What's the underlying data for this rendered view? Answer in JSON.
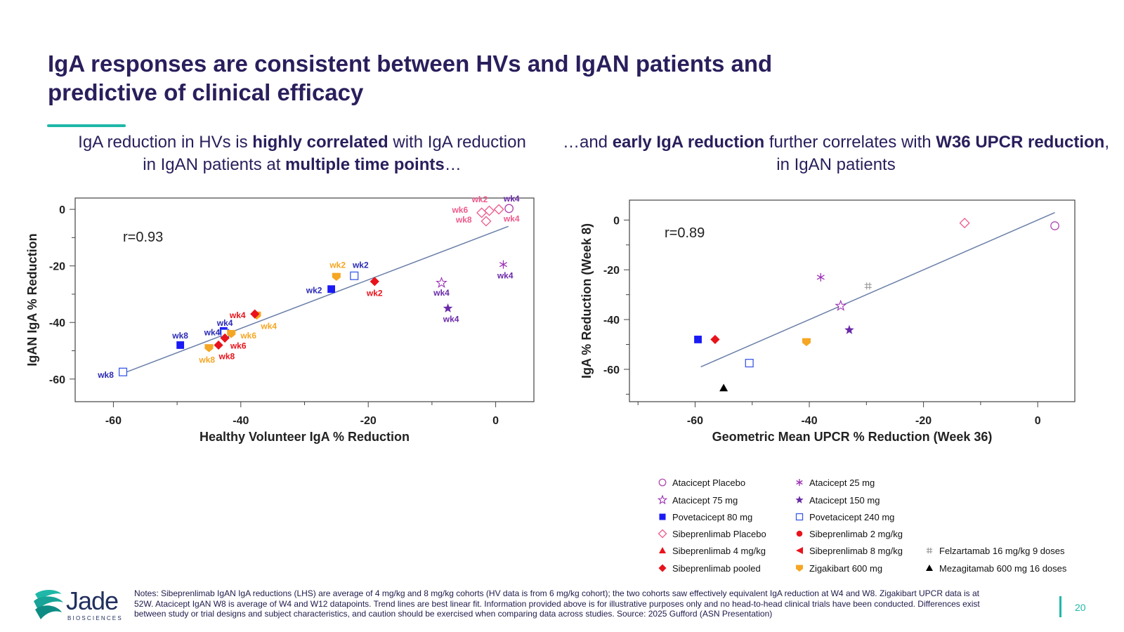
{
  "slide": {
    "title": "IgA responses are consistent between HVs and IgAN patients and predictive of clinical efficacy",
    "subtitle_left": [
      {
        "text": "IgA reduction in HVs is ",
        "bold": false
      },
      {
        "text": "highly correlated",
        "bold": true
      },
      {
        "text": " with IgA reduction in IgAN patients at ",
        "bold": false
      },
      {
        "text": "multiple time points",
        "bold": true
      },
      {
        "text": "…",
        "bold": false
      }
    ],
    "subtitle_right": [
      {
        "text": "…and ",
        "bold": false
      },
      {
        "text": "early IgA reduction",
        "bold": true
      },
      {
        "text": " further correlates with ",
        "bold": false
      },
      {
        "text": "W36 UPCR reduction",
        "bold": true
      },
      {
        "text": ", in IgAN patients",
        "bold": false
      }
    ],
    "notes": "Notes: Sibeprenlimab IgAN IgA reductions (LHS) are average of 4 mg/kg and 8 mg/kg cohorts (HV data is from 6 mg/kg cohort); the two cohorts saw effectively equivalent IgA reduction at W4 and W8. Zigakibart UPCR data is at 52W. Atacicept IgAN W8 is average of W4 and W12 datapoints. Trend lines are best linear fit. Information provided above is for illustrative purposes only and no head-to-head clinical trials have been conducted.  Differences exist between study or trial designs and subject characteristics, and caution should be exercised when comparing data across studies. Source: 2025 Gufford (ASN Presentation)",
    "page_number": "20",
    "logo": {
      "name": "Jade",
      "sub": "BIOSCIENCES"
    }
  },
  "colors": {
    "title": "#2a1e5c",
    "accent": "#1fb8a8",
    "trend": "#6a7fa8"
  },
  "chart_data": [
    {
      "type": "scatter",
      "xlabel": "Healthy Volunteer IgA % Reduction",
      "ylabel": "IgAN IgA % Reduction",
      "xlim": [
        -66,
        6
      ],
      "ylim": [
        -68,
        4
      ],
      "xticks": [
        -60,
        -40,
        -20,
        0
      ],
      "yticks": [
        0,
        -20,
        -40,
        -60
      ],
      "annotation": "r=0.93",
      "trendline": [
        [
          -58.5,
          -58
        ],
        [
          2,
          -6
        ]
      ],
      "points": [
        {
          "label": "wk2",
          "marker": "circle-open",
          "color": "#b04ab0",
          "x": 2.1,
          "y": 0.3,
          "lab": "wk2",
          "labColor": "#ee5a8a",
          "lx": -2.5,
          "ly": 3.5
        },
        {
          "label": "wk4",
          "marker": "circle-open",
          "color": "#b04ab0",
          "x": 2.1,
          "y": 0.3,
          "lab": "wk4",
          "labColor": "#6a2aa8",
          "lx": 2.5,
          "ly": 3.8
        },
        {
          "label": "",
          "marker": "diamond-open",
          "color": "#ee5a8a",
          "x": 0.5,
          "y": 0,
          "lab": "wk4",
          "labColor": "#ee5a8a",
          "lx": 2.5,
          "ly": -3.3
        },
        {
          "label": "",
          "marker": "diamond-open",
          "color": "#ee5a8a",
          "x": -1,
          "y": -0.5,
          "lab": "",
          "labColor": "#ee5a8a",
          "lx": 0,
          "ly": 0
        },
        {
          "label": "",
          "marker": "diamond-open",
          "color": "#ee5a8a",
          "x": -2.2,
          "y": -1.2,
          "lab": "wk6",
          "labColor": "#ee5a8a",
          "lx": -5.6,
          "ly": -0.2
        },
        {
          "label": "",
          "marker": "diamond-open",
          "color": "#ee5a8a",
          "x": -1.5,
          "y": -4.2,
          "lab": "wk8",
          "labColor": "#ee5a8a",
          "lx": -5,
          "ly": -3.7
        },
        {
          "label": "",
          "marker": "asterisk",
          "color": "#9b30b5",
          "x": 1.2,
          "y": -19.5,
          "lab": "wk4",
          "labColor": "#6a2aa8",
          "lx": 1.5,
          "ly": -23.4
        },
        {
          "label": "",
          "marker": "star-open",
          "color": "#9b30b5",
          "x": -8.5,
          "y": -26,
          "lab": "wk4",
          "labColor": "#6a2aa8",
          "lx": -8.5,
          "ly": -29.5
        },
        {
          "label": "",
          "marker": "star",
          "color": "#6a2aa8",
          "x": -7.5,
          "y": -35,
          "lab": "wk4",
          "labColor": "#6a2aa8",
          "lx": -7,
          "ly": -38.8
        },
        {
          "label": "",
          "marker": "square-open",
          "color": "#3a5ae8",
          "x": -22.2,
          "y": -23.5,
          "lab": "wk2",
          "labColor": "#2a2ab5",
          "lx": -21.2,
          "ly": -19.7
        },
        {
          "label": "",
          "marker": "shield",
          "color": "#f5a623",
          "x": -25,
          "y": -23.8,
          "lab": "wk2",
          "labColor": "#f5a623",
          "lx": -24.8,
          "ly": -19.7
        },
        {
          "label": "",
          "marker": "square",
          "color": "#1a1af5",
          "x": -25.8,
          "y": -28.2,
          "lab": "wk2",
          "labColor": "#2a2ab5",
          "lx": -28.5,
          "ly": -28.6
        },
        {
          "label": "",
          "marker": "diamond",
          "color": "#e8131b",
          "x": -19,
          "y": -25.5,
          "lab": "wk2",
          "labColor": "#e8131b",
          "lx": -19,
          "ly": -29.7
        },
        {
          "label": "",
          "marker": "shield",
          "color": "#f5a623",
          "x": -37.5,
          "y": -37.5,
          "lab": "wk4",
          "labColor": "#f5a623",
          "lx": -35.6,
          "ly": -41.3
        },
        {
          "label": "",
          "marker": "diamond",
          "color": "#e8131b",
          "x": -37.8,
          "y": -37,
          "lab": "wk4",
          "labColor": "#e8131b",
          "lx": -40.5,
          "ly": -37.4
        },
        {
          "label": "",
          "marker": "square",
          "color": "#1a1af5",
          "x": -42.7,
          "y": -43,
          "lab": "wk4",
          "labColor": "#2a2ab5",
          "lx": -42.5,
          "ly": -40.2
        },
        {
          "label": "",
          "marker": "square-open",
          "color": "#3a5ae8",
          "x": -42.5,
          "y": -43.8,
          "lab": "wk4",
          "labColor": "#2a2ab5",
          "lx": -44.5,
          "ly": -43.6
        },
        {
          "label": "",
          "marker": "shield",
          "color": "#f5a623",
          "x": -41.5,
          "y": -44,
          "lab": "wk6",
          "labColor": "#f5a623",
          "lx": -38.8,
          "ly": -44.6
        },
        {
          "label": "",
          "marker": "diamond",
          "color": "#e8131b",
          "x": -42.5,
          "y": -45.5,
          "lab": "wk6",
          "labColor": "#e8131b",
          "lx": -40.4,
          "ly": -48.2
        },
        {
          "label": "",
          "marker": "diamond",
          "color": "#e8131b",
          "x": -43.5,
          "y": -48,
          "lab": "wk8",
          "labColor": "#e8131b",
          "lx": -42.2,
          "ly": -52
        },
        {
          "label": "",
          "marker": "shield",
          "color": "#f5a623",
          "x": -45,
          "y": -49,
          "lab": "wk8",
          "labColor": "#f5a623",
          "lx": -45.3,
          "ly": -53.2
        },
        {
          "label": "",
          "marker": "square",
          "color": "#1a1af5",
          "x": -49.5,
          "y": -48,
          "lab": "wk8",
          "labColor": "#2a2ab5",
          "lx": -49.5,
          "ly": -44.6
        },
        {
          "label": "",
          "marker": "square-open",
          "color": "#3a5ae8",
          "x": -58.5,
          "y": -57.5,
          "lab": "wk8",
          "labColor": "#2a2ab5",
          "lx": -61.2,
          "ly": -58.6
        }
      ]
    },
    {
      "type": "scatter",
      "xlabel": "Geometric Mean UPCR % Reduction (Week 36)",
      "ylabel": "IgA % Reduction (Week 8)",
      "xlim": [
        -71.5,
        6.5
      ],
      "ylim": [
        -73,
        8
      ],
      "xticks": [
        -60,
        -40,
        -20,
        0
      ],
      "yticks": [
        0,
        -20,
        -40,
        -60
      ],
      "annotation": "r=0.89",
      "trendline": [
        [
          -59,
          -59
        ],
        [
          3,
          3
        ]
      ],
      "points": [
        {
          "label": "Atacicept Placebo",
          "marker": "circle-open",
          "color": "#b04ab0",
          "x": 3,
          "y": -2.3
        },
        {
          "label": "Sibeprenlimab Placebo",
          "marker": "diamond-open",
          "color": "#ee5a8a",
          "x": -12.8,
          "y": -1.2
        },
        {
          "label": "Atacicept 25 mg",
          "marker": "asterisk",
          "color": "#9b30b5",
          "x": -38,
          "y": -23
        },
        {
          "label": "Felzartamab 16 mg/kg 9 doses",
          "marker": "hash",
          "color": "#999999",
          "x": -29.7,
          "y": -26.5
        },
        {
          "label": "Atacicept 75 mg",
          "marker": "star-open",
          "color": "#9b30b5",
          "x": -34.5,
          "y": -34.5
        },
        {
          "label": "Atacicept 150 mg",
          "marker": "star",
          "color": "#6a2aa8",
          "x": -33,
          "y": -44.2
        },
        {
          "label": "Zigakibart 600 mg",
          "marker": "shield",
          "color": "#f5a623",
          "x": -40.5,
          "y": -49
        },
        {
          "label": "Povetacicept 80 mg",
          "marker": "square",
          "color": "#1a1af5",
          "x": -59.5,
          "y": -48
        },
        {
          "label": "Sibeprenlimab pooled",
          "marker": "diamond",
          "color": "#e8131b",
          "x": -56.5,
          "y": -48
        },
        {
          "label": "Povetacicept 240 mg",
          "marker": "square-open",
          "color": "#3a5ae8",
          "x": -50.5,
          "y": -57.5
        },
        {
          "label": "Mezagitamab 600 mg 16 doses",
          "marker": "triangle",
          "color": "#000000",
          "x": -55,
          "y": -67.5
        }
      ]
    }
  ],
  "legend": [
    {
      "label": "Atacicept Placebo",
      "marker": "circle-open",
      "color": "#b04ab0"
    },
    {
      "label": "Atacicept 25 mg",
      "marker": "asterisk",
      "color": "#9b30b5"
    },
    {
      "label": "Atacicept 75 mg",
      "marker": "star-open",
      "color": "#9b30b5"
    },
    {
      "label": "Atacicept 150 mg",
      "marker": "star",
      "color": "#6a2aa8"
    },
    {
      "label": "Povetacicept 80 mg",
      "marker": "square",
      "color": "#1a1af5"
    },
    {
      "label": "Povetacicept 240 mg",
      "marker": "square-open",
      "color": "#3a5ae8"
    },
    {
      "label": "Sibeprenlimab Placebo",
      "marker": "diamond-open",
      "color": "#ee5a8a"
    },
    {
      "label": "Sibeprenlimab 2 mg/kg",
      "marker": "circle",
      "color": "#e8131b"
    },
    {
      "label": "Sibeprenlimab 4 mg/kg",
      "marker": "triangle",
      "color": "#e8131b"
    },
    {
      "label": "Sibeprenlimab 8 mg/kg",
      "marker": "triangle-left",
      "color": "#e8131b"
    },
    {
      "label": "Felzartamab 16 mg/kg 9 doses",
      "marker": "hash",
      "color": "#999999"
    },
    {
      "label": "Sibeprenlimab pooled",
      "marker": "diamond",
      "color": "#e8131b"
    },
    {
      "label": "Zigakibart 600 mg",
      "marker": "shield",
      "color": "#f5a623"
    },
    {
      "label": "Mezagitamab 600 mg 16 doses",
      "marker": "triangle",
      "color": "#000000"
    }
  ]
}
